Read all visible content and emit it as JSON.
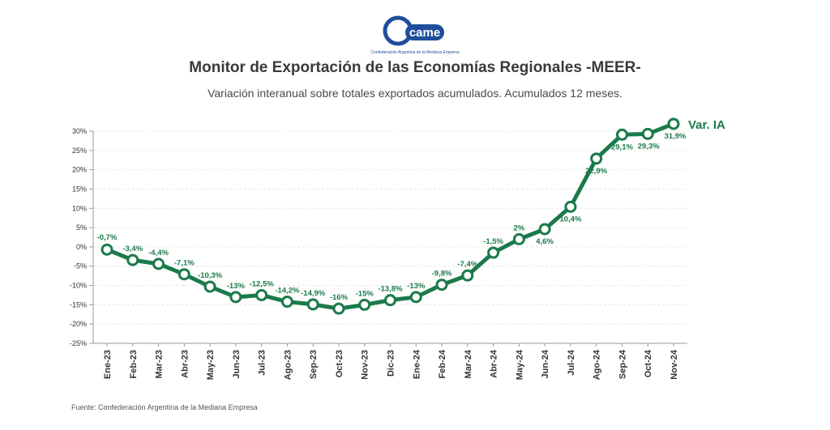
{
  "header": {
    "logo_text": "came",
    "logo_caption": "Confederación Argentina de la Mediana Empresa",
    "title": "Monitor de Exportación de las Economías Regionales -MEER-",
    "subtitle": "Variación interanual sobre totales exportados acumulados. Acumulados 12 meses."
  },
  "footer": {
    "source": "Fuente: Confederación Argentina de la Mediana Empresa"
  },
  "colors": {
    "line": "#1b7a4a",
    "label": "#1b7a4a",
    "axis_text": "#333333",
    "grid": "#e6e6e6",
    "logo": "#1f4f9c"
  },
  "chart_data": {
    "type": "line",
    "categories": [
      "Ene-23",
      "Feb-23",
      "Mar-23",
      "Abr-23",
      "May-23",
      "Jun-23",
      "Jul-23",
      "Ago-23",
      "Sep-23",
      "Oct-23",
      "Nov-23",
      "Dic-23",
      "Ene-24",
      "Feb-24",
      "Mar-24",
      "Abr-24",
      "May-24",
      "Jun-24",
      "Jul-24",
      "Ago-24",
      "Sep-24",
      "Oct-24",
      "Nov-24"
    ],
    "series": [
      {
        "name": "Var. IA",
        "values": [
          -0.7,
          -3.4,
          -4.4,
          -7.1,
          -10.3,
          -13,
          -12.5,
          -14.2,
          -14.9,
          -16,
          -15,
          -13.8,
          -13,
          -9.8,
          -7.4,
          -1.5,
          2,
          4.6,
          10.4,
          22.9,
          29.1,
          29.3,
          31.9
        ],
        "labels": [
          "-0,7%",
          "-3,4%",
          "-4,4%",
          "-7,1%",
          "-10,3%",
          "-13%",
          "-12,5%",
          "-14,2%",
          "-14,9%",
          "-16%",
          "-15%",
          "-13,8%",
          "-13%",
          "-9,8%",
          "-7,4%",
          "-1,5%",
          "2%",
          "4,6%",
          "10,4%",
          "22,9%",
          "29,1%",
          "29,3%",
          "31,9%"
        ]
      }
    ],
    "ylim": [
      -25,
      30
    ],
    "yticks": [
      30,
      25,
      20,
      15,
      10,
      5,
      0,
      -5,
      -10,
      -15,
      -20,
      -25
    ],
    "ytick_labels": [
      "30%",
      "25%",
      "20%",
      "15%",
      "10%",
      "5%",
      "0%",
      "-5%",
      "-10%",
      "-15%",
      "-20%",
      "-25%"
    ],
    "grid": true,
    "legend": "end-of-line label"
  }
}
